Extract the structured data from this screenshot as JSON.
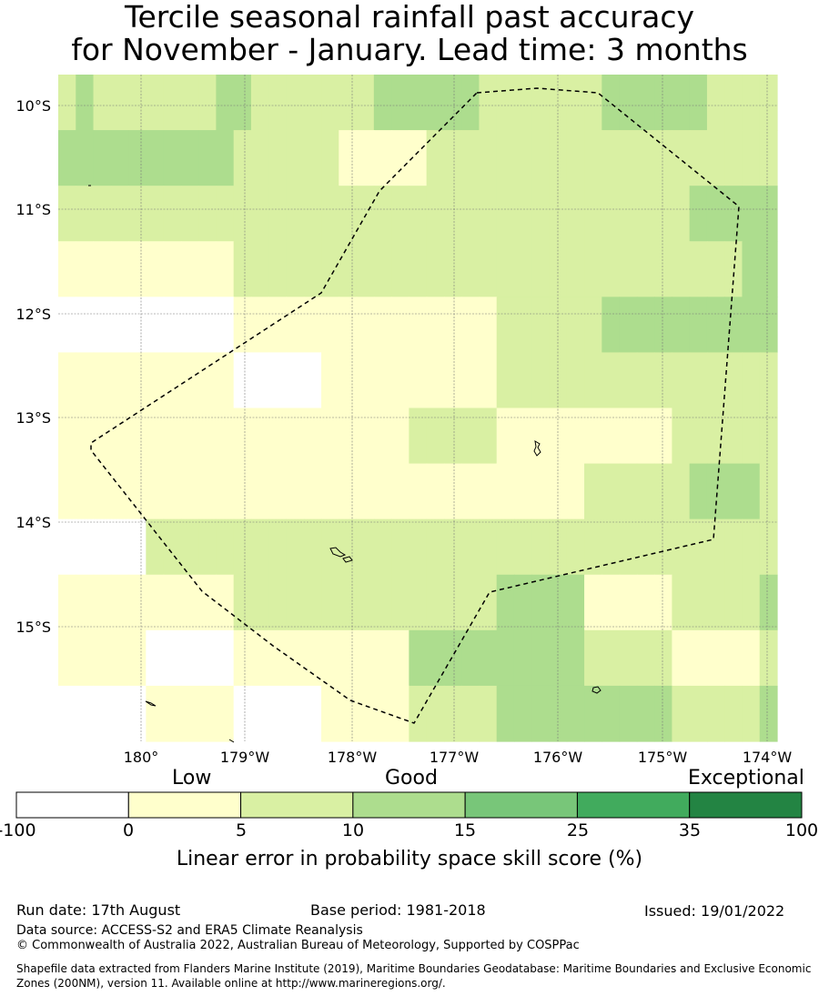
{
  "title": {
    "line1": "Tercile seasonal rainfall past accuracy",
    "line2": "for November - January. Lead time: 3 months"
  },
  "map": {
    "lat_labels": [
      "10°S",
      "11°S",
      "12°S",
      "13°S",
      "14°S",
      "15°S"
    ],
    "lon_labels": [
      "180°",
      "179°W",
      "178°W",
      "177°W",
      "176°W",
      "175°W",
      "174°W"
    ],
    "cell_levels": [
      [
        2,
        3,
        2,
        2,
        2,
        2,
        2,
        2,
        2,
        3,
        3,
        2,
        2,
        2,
        2,
        2,
        2,
        2,
        3,
        3,
        3,
        3,
        3,
        3,
        2,
        2,
        2,
        2,
        2,
        2,
        2,
        3,
        3,
        3,
        3,
        3,
        3,
        2,
        2,
        2,
        2
      ],
      [
        3,
        3,
        3,
        3,
        3,
        3,
        3,
        3,
        3,
        3,
        2,
        2,
        2,
        2,
        2,
        2,
        1,
        1,
        1,
        1,
        1,
        2,
        2,
        2,
        2,
        2,
        2,
        2,
        2,
        2,
        2,
        2,
        2,
        2,
        2,
        2,
        2,
        2,
        2,
        2,
        2
      ],
      [
        2,
        2,
        2,
        2,
        2,
        2,
        2,
        2,
        2,
        2,
        2,
        2,
        2,
        2,
        2,
        2,
        2,
        2,
        2,
        2,
        2,
        2,
        2,
        2,
        2,
        2,
        2,
        2,
        2,
        2,
        2,
        2,
        2,
        2,
        2,
        2,
        3,
        3,
        3,
        3,
        3
      ],
      [
        1,
        1,
        1,
        1,
        1,
        1,
        1,
        1,
        1,
        1,
        2,
        2,
        2,
        2,
        2,
        2,
        2,
        2,
        2,
        2,
        2,
        2,
        2,
        2,
        2,
        2,
        2,
        2,
        2,
        2,
        2,
        2,
        2,
        2,
        2,
        2,
        2,
        2,
        2,
        3,
        3
      ],
      [
        0,
        0,
        0,
        0,
        0,
        0,
        0,
        0,
        0,
        0,
        1,
        1,
        1,
        1,
        1,
        1,
        1,
        1,
        1,
        1,
        1,
        1,
        1,
        1,
        1,
        2,
        2,
        2,
        2,
        2,
        2,
        3,
        3,
        3,
        3,
        3,
        3,
        3,
        3,
        3,
        3
      ],
      [
        1,
        1,
        1,
        1,
        1,
        1,
        1,
        1,
        1,
        1,
        0,
        0,
        0,
        0,
        0,
        1,
        1,
        1,
        1,
        1,
        1,
        1,
        1,
        1,
        1,
        2,
        2,
        2,
        2,
        2,
        2,
        2,
        2,
        2,
        2,
        2,
        2,
        2,
        2,
        2,
        2
      ],
      [
        1,
        1,
        1,
        1,
        1,
        1,
        1,
        1,
        1,
        1,
        1,
        1,
        1,
        1,
        1,
        1,
        1,
        1,
        1,
        1,
        2,
        2,
        2,
        2,
        2,
        1,
        1,
        1,
        1,
        1,
        1,
        1,
        1,
        1,
        1,
        2,
        2,
        2,
        2,
        2,
        2
      ],
      [
        1,
        1,
        1,
        1,
        1,
        1,
        1,
        1,
        1,
        1,
        1,
        1,
        1,
        1,
        1,
        1,
        1,
        1,
        1,
        1,
        1,
        1,
        1,
        1,
        1,
        1,
        1,
        1,
        1,
        1,
        2,
        2,
        2,
        2,
        2,
        2,
        3,
        3,
        3,
        3,
        2
      ],
      [
        0,
        0,
        0,
        0,
        0,
        2,
        2,
        2,
        2,
        2,
        2,
        2,
        2,
        2,
        2,
        2,
        2,
        2,
        2,
        2,
        2,
        2,
        2,
        2,
        2,
        2,
        2,
        2,
        2,
        2,
        2,
        2,
        2,
        2,
        2,
        2,
        2,
        2,
        2,
        2,
        2
      ],
      [
        1,
        1,
        1,
        1,
        1,
        1,
        1,
        1,
        1,
        1,
        2,
        2,
        2,
        2,
        2,
        2,
        2,
        2,
        2,
        2,
        2,
        2,
        2,
        2,
        2,
        3,
        3,
        3,
        3,
        3,
        1,
        1,
        1,
        1,
        1,
        2,
        2,
        2,
        2,
        2,
        3
      ],
      [
        1,
        1,
        1,
        1,
        1,
        0,
        0,
        0,
        0,
        0,
        1,
        1,
        1,
        1,
        1,
        1,
        1,
        1,
        1,
        1,
        3,
        3,
        3,
        3,
        3,
        3,
        3,
        3,
        3,
        3,
        2,
        2,
        2,
        2,
        2,
        1,
        1,
        1,
        1,
        1,
        2
      ],
      [
        0,
        0,
        0,
        0,
        0,
        1,
        1,
        1,
        1,
        1,
        0,
        0,
        0,
        0,
        0,
        1,
        1,
        1,
        1,
        1,
        2,
        2,
        2,
        2,
        2,
        3,
        3,
        3,
        3,
        3,
        3,
        3,
        3,
        3,
        3,
        2,
        2,
        2,
        2,
        2,
        3
      ]
    ]
  },
  "colorbar": {
    "categories": [
      "Low",
      "Good",
      "Exceptional"
    ],
    "ticks": [
      "-100",
      "0",
      "5",
      "10",
      "15",
      "25",
      "35",
      "100"
    ],
    "colors": [
      "#ffffff",
      "#ffffcc",
      "#d9f0a3",
      "#addd8e",
      "#78c679",
      "#41ab5d",
      "#238443"
    ],
    "title": "Linear error in probability space skill score (%)"
  },
  "footer": {
    "run_date": "Run date: 17th August",
    "base_period": "Base period: 1981-2018",
    "issued": "Issued: 19/01/2022",
    "data_source": "Data source: ACCESS-S2 and ERA5 Climate Reanalysis",
    "copyright": "© Commonwealth of Australia 2022, Australian Bureau of Meteorology, Supported by COSPPac",
    "shapefile": "Shapefile data extracted from Flanders Marine Institute (2019), Maritime Boundaries Geodatabase: Maritime Boundaries and Exclusive Economic Zones (200NM), version 11. Available online at http://www.marineregions.org/."
  }
}
